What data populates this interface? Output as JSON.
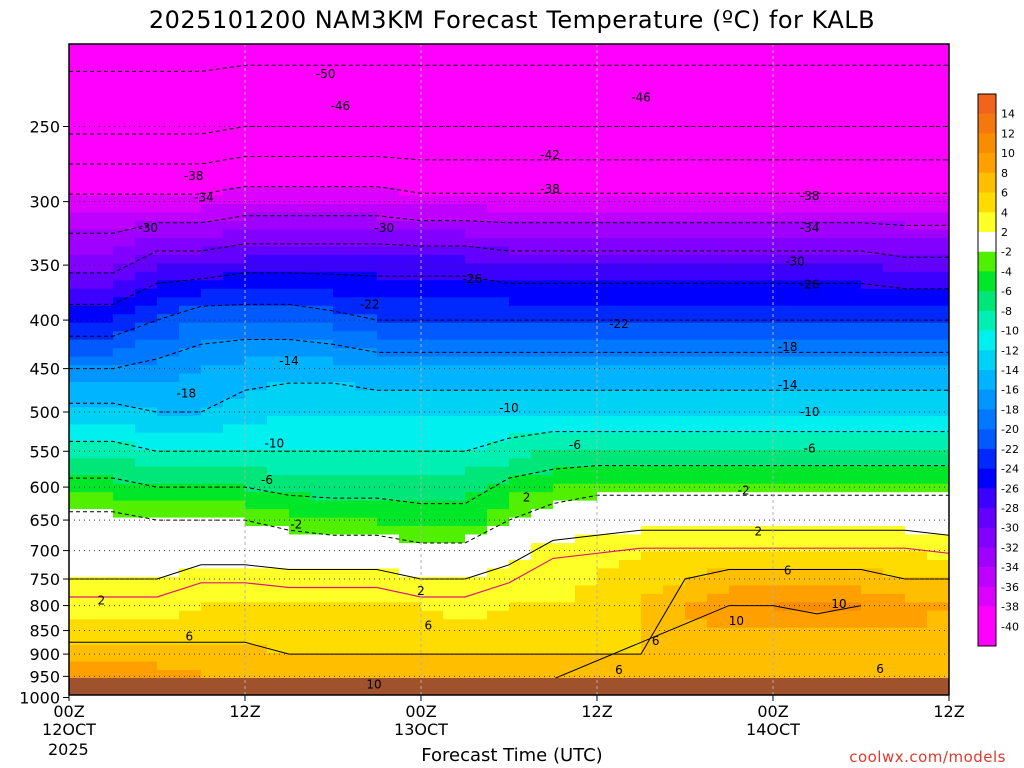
{
  "title": "2025101200 NAM3KM Forecast Temperature (ºC) for KALB",
  "xaxis_title": "Forecast Time (UTC)",
  "credit": "coolwx.com/models",
  "colors": {
    "ground": "#a0522d",
    "freezing_line": "#e0187a",
    "grid": "#b0b0b0"
  },
  "chart_data": {
    "type": "heatmap",
    "title": "2025101200 NAM3KM Forecast Temperature (ºC) for KALB",
    "xlabel": "Forecast Time (UTC)",
    "x_range": [
      0,
      60
    ],
    "x_unit": "hours since 2025-10-12 00Z",
    "x_ticks": [
      {
        "x": 0,
        "label": "00Z",
        "sub": "12OCT",
        "sub2": "2025"
      },
      {
        "x": 12,
        "label": "12Z",
        "sub": "",
        "sub2": ""
      },
      {
        "x": 24,
        "label": "00Z",
        "sub": "13OCT",
        "sub2": ""
      },
      {
        "x": 36,
        "label": "12Z",
        "sub": "",
        "sub2": ""
      },
      {
        "x": 48,
        "label": "00Z",
        "sub": "14OCT",
        "sub2": ""
      },
      {
        "x": 60,
        "label": "12Z",
        "sub": "",
        "sub2": ""
      }
    ],
    "y_axis": {
      "scale": "pressure",
      "range": [
        1037,
        200
      ],
      "ticks": [
        250,
        300,
        350,
        400,
        450,
        500,
        550,
        600,
        650,
        700,
        750,
        800,
        850,
        900,
        950,
        1000
      ]
    },
    "colorbar": {
      "bounds": [
        16,
        14,
        12,
        10,
        8,
        6,
        4,
        2,
        -2,
        -4,
        -6,
        -8,
        -10,
        -12,
        -14,
        -16,
        -18,
        -20,
        -22,
        -24,
        -26,
        -28,
        -30,
        -32,
        -34,
        -36,
        -38,
        -40,
        -42
      ],
      "labels": [
        "14",
        "12",
        "10",
        "8",
        "6",
        "4",
        "2",
        "-2",
        "-4",
        "-6",
        "-8",
        "-10",
        "-12",
        "-14",
        "-16",
        "-18",
        "-20",
        "-22",
        "-24",
        "-26",
        "-28",
        "-30",
        "-32",
        "-34",
        "-36",
        "-38",
        "-40"
      ],
      "colors": [
        "#f0641e",
        "#f5780f",
        "#fa8c00",
        "#ffa000",
        "#ffbe00",
        "#ffdc00",
        "#ffff28",
        "#ffffff",
        "#50f000",
        "#00e628",
        "#00e678",
        "#00f0b4",
        "#00f0f0",
        "#00d2f5",
        "#00b4ff",
        "#0096ff",
        "#0078ff",
        "#005aff",
        "#0028ff",
        "#0000ff",
        "#3c00ff",
        "#6400ff",
        "#8200ff",
        "#a000ff",
        "#be00ff",
        "#dc00ff",
        "#ff00ff",
        "#ff00ff"
      ]
    },
    "profile_hours": [
      0,
      3,
      6,
      9,
      12,
      15,
      18,
      21,
      24,
      27,
      30,
      33,
      36,
      39,
      42,
      45,
      48,
      51,
      54,
      57,
      60
    ],
    "profile_levels": [
      1000,
      950,
      900,
      850,
      800,
      750,
      700,
      650,
      600,
      550,
      500,
      450,
      400,
      350,
      300,
      250,
      200
    ],
    "temperature_grid": [
      [
        13,
        9,
        7,
        5,
        3,
        2,
        1,
        -1,
        -5,
        -9,
        -13,
        -18,
        -24,
        -31,
        -37,
        -47,
        -52
      ],
      [
        13,
        9,
        7,
        5,
        3,
        2,
        1,
        -1,
        -5,
        -9,
        -13,
        -18,
        -24,
        -31,
        -37,
        -47,
        -52
      ],
      [
        12,
        9,
        7,
        5,
        3,
        2,
        1,
        -2,
        -6,
        -10,
        -14,
        -17,
        -22,
        -28,
        -37,
        -47,
        -52
      ],
      [
        12,
        8,
        7,
        5,
        4,
        3,
        1,
        -2,
        -6,
        -10,
        -14,
        -16,
        -20,
        -28,
        -37,
        -47,
        -52
      ],
      [
        11,
        8,
        7,
        5,
        4,
        3,
        1,
        -2,
        -6,
        -10,
        -13,
        -15,
        -20,
        -27,
        -36,
        -46,
        -52
      ],
      [
        11,
        8,
        6,
        5,
        4,
        3,
        0,
        -3,
        -7,
        -10,
        -12,
        -15,
        -20,
        -27,
        -36,
        -46,
        -52
      ],
      [
        11,
        8,
        6,
        5,
        4,
        3,
        0,
        -4,
        -7,
        -10,
        -12,
        -15,
        -21,
        -27,
        -36,
        -46,
        -52
      ],
      [
        10,
        8,
        6,
        5,
        4,
        3,
        0,
        -4,
        -7,
        -10,
        -12,
        -16,
        -22,
        -27,
        -36,
        -46,
        -52
      ],
      [
        10,
        8,
        6,
        5,
        4,
        2,
        -1,
        -5,
        -7,
        -10,
        -12,
        -16,
        -22,
        -27,
        -37,
        -46,
        -52
      ],
      [
        10,
        8,
        6,
        5,
        3,
        2,
        -1,
        -5,
        -7,
        -10,
        -12,
        -16,
        -22,
        -27,
        -37,
        -46,
        -52
      ],
      [
        10,
        8,
        6,
        5,
        4,
        3,
        1,
        -2,
        -5,
        -9,
        -12,
        -16,
        -22,
        -28,
        -37,
        -46,
        -52
      ],
      [
        9,
        7,
        6,
        5,
        4,
        3,
        3,
        0,
        -4,
        -8,
        -12,
        -16,
        -22,
        -28,
        -37,
        -46,
        -52
      ],
      [
        9,
        7,
        6,
        6,
        5,
        4,
        3,
        1,
        -3,
        -8,
        -12,
        -16,
        -22,
        -28,
        -37,
        -46,
        -52
      ],
      [
        9,
        7,
        6,
        6,
        6,
        5,
        4,
        1,
        -3,
        -8,
        -12,
        -16,
        -22,
        -28,
        -37,
        -46,
        -52
      ],
      [
        9,
        7,
        7,
        7,
        8,
        6,
        4,
        1,
        -3,
        -8,
        -12,
        -16,
        -22,
        -28,
        -37,
        -46,
        -52
      ],
      [
        9,
        7,
        7,
        8,
        10,
        7,
        4,
        1,
        -3,
        -8,
        -12,
        -16,
        -22,
        -28,
        -37,
        -46,
        -52
      ],
      [
        9,
        7,
        7,
        8,
        10,
        7,
        4,
        1,
        -3,
        -8,
        -12,
        -16,
        -22,
        -28,
        -37,
        -46,
        -52
      ],
      [
        9,
        7,
        7,
        8,
        11,
        7,
        4,
        1,
        -3,
        -8,
        -12,
        -16,
        -22,
        -28,
        -37,
        -46,
        -52
      ],
      [
        8,
        7,
        7,
        8,
        10,
        7,
        4,
        1,
        -3,
        -8,
        -12,
        -16,
        -22,
        -28,
        -37,
        -46,
        -52
      ],
      [
        8,
        7,
        7,
        8,
        9,
        6,
        4,
        1,
        -3,
        -8,
        -12,
        -16,
        -22,
        -29,
        -37,
        -46,
        -52
      ],
      [
        8,
        7,
        7,
        7,
        8,
        6,
        3,
        1,
        -3,
        -8,
        -12,
        -16,
        -22,
        -29,
        -37,
        -46,
        -52
      ]
    ],
    "contour_levels": [
      10,
      6,
      2,
      -2,
      -6,
      -10,
      -14,
      -18,
      -22,
      -26,
      -30,
      -34,
      -38,
      -42,
      -46,
      -50
    ],
    "contour_labels": [
      {
        "text": "-50",
        "x": 17.5,
        "p": 220
      },
      {
        "text": "-46",
        "x": 18.5,
        "p": 238
      },
      {
        "text": "-38",
        "x": 8.5,
        "p": 282
      },
      {
        "text": "-34",
        "x": 9.2,
        "p": 297
      },
      {
        "text": "-30",
        "x": 5.4,
        "p": 320
      },
      {
        "text": "-30",
        "x": 21.5,
        "p": 320
      },
      {
        "text": "-18",
        "x": 8.0,
        "p": 478
      },
      {
        "text": "-14",
        "x": 15.0,
        "p": 442
      },
      {
        "text": "-10",
        "x": 14.0,
        "p": 540
      },
      {
        "text": "-6",
        "x": 13.5,
        "p": 590
      },
      {
        "text": "-2",
        "x": 15.5,
        "p": 657
      },
      {
        "text": "2",
        "x": 2.2,
        "p": 790
      },
      {
        "text": "6",
        "x": 8.2,
        "p": 862
      },
      {
        "text": "10",
        "x": 20.8,
        "p": 969
      },
      {
        "text": "2",
        "x": 24.0,
        "p": 772
      },
      {
        "text": "6",
        "x": 24.5,
        "p": 840
      },
      {
        "text": "-46",
        "x": 39.0,
        "p": 233
      },
      {
        "text": "-42",
        "x": 32.8,
        "p": 268
      },
      {
        "text": "-38",
        "x": 32.8,
        "p": 291
      },
      {
        "text": "-26",
        "x": 27.5,
        "p": 362
      },
      {
        "text": "-22",
        "x": 20.5,
        "p": 385
      },
      {
        "text": "-22",
        "x": 37.5,
        "p": 404
      },
      {
        "text": "-10",
        "x": 30.0,
        "p": 495
      },
      {
        "text": "-6",
        "x": 34.5,
        "p": 542
      },
      {
        "text": "-2",
        "x": 46.0,
        "p": 605
      },
      {
        "text": "2",
        "x": 31.2,
        "p": 615
      },
      {
        "text": "2",
        "x": 47.0,
        "p": 668
      },
      {
        "text": "-38",
        "x": 50.5,
        "p": 296
      },
      {
        "text": "-34",
        "x": 50.5,
        "p": 320
      },
      {
        "text": "-30",
        "x": 49.5,
        "p": 347
      },
      {
        "text": "-26",
        "x": 50.5,
        "p": 367
      },
      {
        "text": "-18",
        "x": 49.0,
        "p": 427
      },
      {
        "text": "-14",
        "x": 49.0,
        "p": 468
      },
      {
        "text": "-10",
        "x": 50.5,
        "p": 500
      },
      {
        "text": "-6",
        "x": 50.5,
        "p": 546
      },
      {
        "text": "6",
        "x": 49.0,
        "p": 735
      },
      {
        "text": "10",
        "x": 52.5,
        "p": 797
      },
      {
        "text": "10",
        "x": 45.5,
        "p": 830
      },
      {
        "text": "6",
        "x": 40.0,
        "p": 872
      },
      {
        "text": "6",
        "x": 37.5,
        "p": 935
      },
      {
        "text": "6",
        "x": 55.3,
        "p": 933
      }
    ]
  }
}
